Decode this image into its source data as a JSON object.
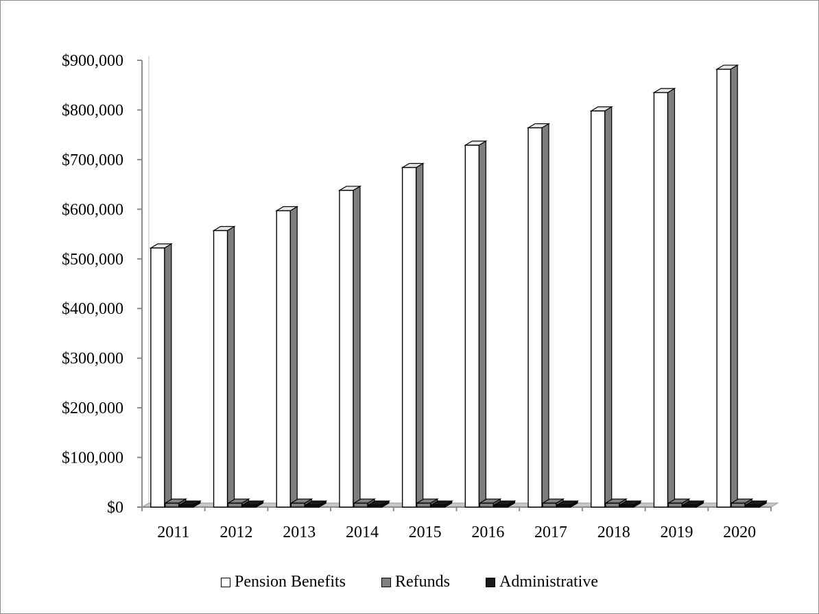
{
  "chart_data": {
    "type": "bar",
    "title": "",
    "xlabel": "",
    "ylabel": "",
    "categories": [
      "2011",
      "2012",
      "2013",
      "2014",
      "2015",
      "2016",
      "2017",
      "2018",
      "2019",
      "2020"
    ],
    "series": [
      {
        "name": "Pension Benefits",
        "color": "#ffffff",
        "values": [
          522000,
          557000,
          597000,
          638000,
          684000,
          729000,
          764000,
          798000,
          835000,
          882000
        ]
      },
      {
        "name": "Refunds",
        "color": "#808080",
        "values": [
          8000,
          8000,
          8000,
          8000,
          8000,
          8000,
          8000,
          8000,
          8000,
          8000
        ]
      },
      {
        "name": "Administrative",
        "color": "#1a1a1a",
        "values": [
          4000,
          4000,
          4000,
          4000,
          4000,
          4000,
          4000,
          4000,
          4000,
          4000
        ]
      }
    ],
    "ylim": [
      0,
      900000
    ],
    "yticks": [
      0,
      100000,
      200000,
      300000,
      400000,
      500000,
      600000,
      700000,
      800000,
      900000
    ],
    "ytick_labels": [
      "$0",
      "$100,000",
      "$200,000",
      "$300,000",
      "$400,000",
      "$500,000",
      "$600,000",
      "$700,000",
      "$800,000",
      "$900,000"
    ],
    "grid": false,
    "legend_position": "bottom",
    "style": "3d-column"
  }
}
